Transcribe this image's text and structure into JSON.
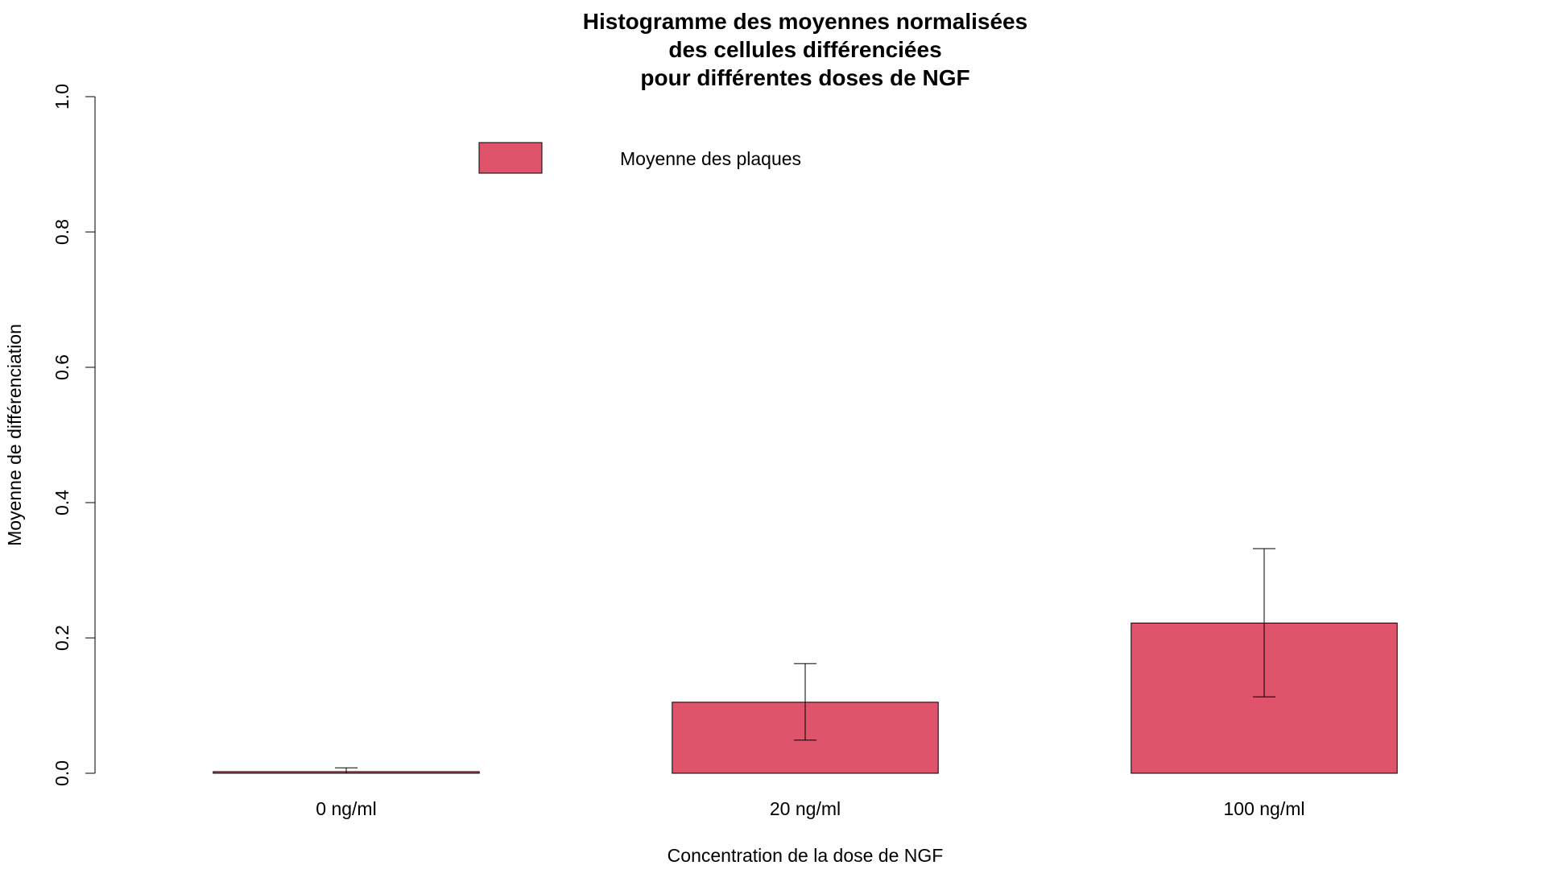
{
  "colors": {
    "bar_fill": "#DF536B",
    "bar_stroke": "#000000",
    "axis": "#000000",
    "background": "#FFFFFF"
  },
  "chart_data": {
    "type": "bar",
    "title": "Histogramme des moyennes normalisées des cellules différenciées pour différentes doses de NGF",
    "title_lines": [
      "Histogramme des moyennes normalisées",
      "des cellules différenciées",
      "pour différentes doses de NGF"
    ],
    "xlabel": "Concentration de la dose de NGF",
    "ylabel": "Moyenne de différenciation",
    "ylim": [
      0,
      1
    ],
    "yticks": [
      0.0,
      0.2,
      0.4,
      0.6,
      0.8,
      1.0
    ],
    "ytick_labels": [
      "0.0",
      "0.2",
      "0.4",
      "0.6",
      "0.8",
      "1.0"
    ],
    "categories": [
      "0 ng/ml",
      "20 ng/ml",
      "100 ng/ml"
    ],
    "series": [
      {
        "name": "Moyenne des plaques",
        "values": [
          0.002,
          0.105,
          0.222
        ],
        "error_lower": [
          0.0,
          0.049,
          0.113
        ],
        "error_upper": [
          0.008,
          0.162,
          0.332
        ]
      }
    ],
    "legend": {
      "position": "top-center",
      "entries": [
        "Moyenne des plaques"
      ]
    },
    "grid": false
  }
}
